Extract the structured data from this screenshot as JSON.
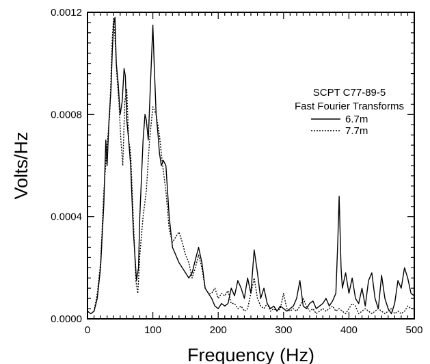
{
  "chart_data": {
    "type": "line",
    "title": "",
    "xlabel": "Frequency (Hz)",
    "ylabel": "Volts/Hz",
    "xlim": [
      0,
      500
    ],
    "ylim": [
      0,
      0.0012
    ],
    "x_ticks": [
      0,
      100,
      200,
      300,
      400,
      500
    ],
    "y_ticks": [
      0.0,
      0.0004,
      0.0008,
      0.0012
    ],
    "x_tick_labels": [
      "0",
      "100",
      "200",
      "300",
      "400",
      "500"
    ],
    "y_tick_labels": [
      "0.0000",
      "0.0004",
      "0.0008",
      "0.0012"
    ],
    "grid": false,
    "legend": {
      "position": "top-right",
      "title_line1": "SCPT C77-89-5",
      "title_line2": "Fast Fourier Transforms"
    },
    "series": [
      {
        "name": "6.7m",
        "style": "solid",
        "color": "#000000",
        "points": [
          [
            0,
            3e-05
          ],
          [
            5,
            2e-05
          ],
          [
            10,
            3e-05
          ],
          [
            15,
            8e-05
          ],
          [
            20,
            0.0002
          ],
          [
            25,
            0.00045
          ],
          [
            28,
            0.0007
          ],
          [
            30,
            0.0006
          ],
          [
            33,
            0.00078
          ],
          [
            36,
            0.0009
          ],
          [
            38,
            0.00105
          ],
          [
            40,
            0.00115
          ],
          [
            42,
            0.00118
          ],
          [
            44,
            0.001
          ],
          [
            47,
            0.00092
          ],
          [
            50,
            0.0008
          ],
          [
            53,
            0.00085
          ],
          [
            56,
            0.00098
          ],
          [
            58,
            0.00095
          ],
          [
            60,
            0.00078
          ],
          [
            63,
            0.0007
          ],
          [
            66,
            0.0006
          ],
          [
            70,
            0.00035
          ],
          [
            75,
            0.00015
          ],
          [
            78,
            0.0002
          ],
          [
            80,
            0.0004
          ],
          [
            85,
            0.0007
          ],
          [
            88,
            0.0008
          ],
          [
            90,
            0.00078
          ],
          [
            93,
            0.0007
          ],
          [
            96,
            0.0009
          ],
          [
            100,
            0.00115
          ],
          [
            102,
            0.001
          ],
          [
            105,
            0.0008
          ],
          [
            108,
            0.00072
          ],
          [
            110,
            0.00065
          ],
          [
            113,
            0.0006
          ],
          [
            116,
            0.00062
          ],
          [
            120,
            0.0006
          ],
          [
            125,
            0.0004
          ],
          [
            130,
            0.00028
          ],
          [
            135,
            0.00025
          ],
          [
            140,
            0.00022
          ],
          [
            145,
            0.0002
          ],
          [
            150,
            0.00018
          ],
          [
            155,
            0.00016
          ],
          [
            160,
            0.00018
          ],
          [
            165,
            0.00023
          ],
          [
            170,
            0.00028
          ],
          [
            175,
            0.00022
          ],
          [
            180,
            0.00012
          ],
          [
            185,
            0.0001
          ],
          [
            190,
            8e-05
          ],
          [
            195,
            5e-05
          ],
          [
            200,
            4e-05
          ],
          [
            205,
            6e-05
          ],
          [
            210,
            5e-05
          ],
          [
            215,
            6e-05
          ],
          [
            220,
            0.00012
          ],
          [
            225,
            9e-05
          ],
          [
            230,
            0.00015
          ],
          [
            235,
            0.00012
          ],
          [
            240,
            8e-05
          ],
          [
            245,
            0.00016
          ],
          [
            250,
            0.0001
          ],
          [
            255,
            0.00027
          ],
          [
            260,
            0.00018
          ],
          [
            265,
            8e-05
          ],
          [
            270,
            0.00012
          ],
          [
            275,
            6e-05
          ],
          [
            280,
            4e-05
          ],
          [
            285,
            5e-05
          ],
          [
            290,
            3e-05
          ],
          [
            295,
            5e-05
          ],
          [
            300,
            4e-05
          ],
          [
            305,
            3e-05
          ],
          [
            310,
            4e-05
          ],
          [
            315,
            5e-05
          ],
          [
            320,
            8e-05
          ],
          [
            325,
            0.00015
          ],
          [
            330,
            5e-05
          ],
          [
            335,
            4e-05
          ],
          [
            340,
            6e-05
          ],
          [
            345,
            7e-05
          ],
          [
            350,
            4e-05
          ],
          [
            355,
            5e-05
          ],
          [
            360,
            6e-05
          ],
          [
            365,
            8e-05
          ],
          [
            370,
            5e-05
          ],
          [
            375,
            7e-05
          ],
          [
            380,
            0.0001
          ],
          [
            383,
            0.0003
          ],
          [
            385,
            0.00048
          ],
          [
            388,
            0.0002
          ],
          [
            390,
            0.00012
          ],
          [
            395,
            0.00018
          ],
          [
            400,
            0.0001
          ],
          [
            405,
            0.00016
          ],
          [
            410,
            8e-05
          ],
          [
            415,
            6e-05
          ],
          [
            420,
            0.00012
          ],
          [
            425,
            5e-05
          ],
          [
            430,
            0.00015
          ],
          [
            435,
            0.00018
          ],
          [
            440,
            8e-05
          ],
          [
            445,
            4e-05
          ],
          [
            450,
            0.00017
          ],
          [
            455,
            8e-05
          ],
          [
            460,
            4e-05
          ],
          [
            465,
            2e-05
          ],
          [
            470,
            6e-05
          ],
          [
            475,
            0.00015
          ],
          [
            480,
            0.00012
          ],
          [
            485,
            0.0002
          ],
          [
            490,
            0.00016
          ],
          [
            495,
            0.0001
          ],
          [
            500,
            9e-05
          ]
        ]
      },
      {
        "name": "7.7m",
        "style": "dotted",
        "color": "#000000",
        "points": [
          [
            0,
            3e-05
          ],
          [
            5,
            2e-05
          ],
          [
            10,
            3e-05
          ],
          [
            15,
            0.0001
          ],
          [
            20,
            0.00022
          ],
          [
            25,
            0.0005
          ],
          [
            30,
            0.00068
          ],
          [
            34,
            0.0008
          ],
          [
            38,
            0.0011
          ],
          [
            40,
            0.00118
          ],
          [
            42,
            0.0011
          ],
          [
            45,
            0.00095
          ],
          [
            48,
            0.00085
          ],
          [
            51,
            0.0007
          ],
          [
            54,
            0.0006
          ],
          [
            57,
            0.00085
          ],
          [
            60,
            0.0009
          ],
          [
            63,
            0.0007
          ],
          [
            66,
            0.00065
          ],
          [
            70,
            0.0004
          ],
          [
            74,
            0.00015
          ],
          [
            77,
            0.0001
          ],
          [
            80,
            0.00025
          ],
          [
            85,
            0.0004
          ],
          [
            90,
            0.0005
          ],
          [
            95,
            0.0007
          ],
          [
            100,
            0.00083
          ],
          [
            105,
            0.0008
          ],
          [
            110,
            0.00072
          ],
          [
            115,
            0.0006
          ],
          [
            120,
            0.0005
          ],
          [
            125,
            0.00035
          ],
          [
            130,
            0.0003
          ],
          [
            135,
            0.00032
          ],
          [
            140,
            0.00034
          ],
          [
            145,
            0.0003
          ],
          [
            150,
            0.00025
          ],
          [
            155,
            0.00022
          ],
          [
            160,
            0.00016
          ],
          [
            165,
            0.0002
          ],
          [
            170,
            0.00025
          ],
          [
            175,
            0.0002
          ],
          [
            180,
            0.00012
          ],
          [
            185,
            0.0001
          ],
          [
            190,
            0.0001
          ],
          [
            195,
            0.00012
          ],
          [
            200,
            8e-05
          ],
          [
            205,
            0.0001
          ],
          [
            210,
            9e-05
          ],
          [
            215,
            0.00011
          ],
          [
            220,
            6e-05
          ],
          [
            225,
            6e-05
          ],
          [
            230,
            4e-05
          ],
          [
            235,
            5e-05
          ],
          [
            240,
            3e-05
          ],
          [
            245,
            4e-05
          ],
          [
            250,
            0.0001
          ],
          [
            255,
            0.00016
          ],
          [
            260,
            8e-05
          ],
          [
            265,
            5e-05
          ],
          [
            270,
            4e-05
          ],
          [
            275,
            6e-05
          ],
          [
            280,
            3e-05
          ],
          [
            285,
            4e-05
          ],
          [
            290,
            3e-05
          ],
          [
            295,
            4e-05
          ],
          [
            300,
            0.0001
          ],
          [
            305,
            4e-05
          ],
          [
            310,
            3e-05
          ],
          [
            315,
            4e-05
          ],
          [
            320,
            3e-05
          ],
          [
            325,
            5e-05
          ],
          [
            330,
            8e-05
          ],
          [
            335,
            5e-05
          ],
          [
            340,
            3e-05
          ],
          [
            345,
            4e-05
          ],
          [
            350,
            2e-05
          ],
          [
            355,
            3e-05
          ],
          [
            360,
            4e-05
          ],
          [
            365,
            3e-05
          ],
          [
            370,
            4e-05
          ],
          [
            375,
            5e-05
          ],
          [
            380,
            3e-05
          ],
          [
            385,
            4e-05
          ],
          [
            390,
            3e-05
          ],
          [
            395,
            2e-05
          ],
          [
            400,
            4e-05
          ],
          [
            405,
            6e-05
          ],
          [
            410,
            5e-05
          ],
          [
            415,
            2e-05
          ],
          [
            420,
            3e-05
          ],
          [
            425,
            4e-05
          ],
          [
            430,
            3e-05
          ],
          [
            435,
            2e-05
          ],
          [
            440,
            3e-05
          ],
          [
            445,
            4e-05
          ],
          [
            450,
            3e-05
          ],
          [
            455,
            2e-05
          ],
          [
            460,
            3e-05
          ],
          [
            465,
            4e-05
          ],
          [
            470,
            2e-05
          ],
          [
            475,
            3e-05
          ],
          [
            480,
            2e-05
          ],
          [
            485,
            3e-05
          ],
          [
            490,
            5e-05
          ],
          [
            495,
            4e-05
          ],
          [
            500,
            4e-05
          ]
        ]
      }
    ]
  }
}
